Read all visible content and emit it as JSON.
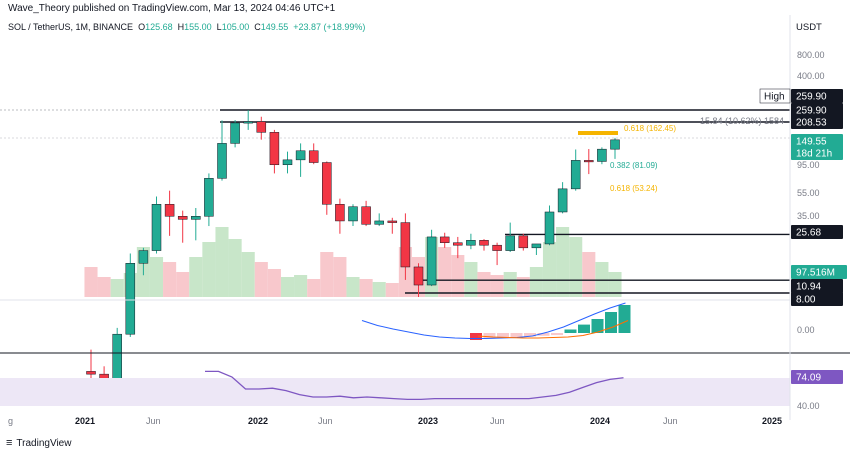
{
  "header": {
    "publisher": "Wave_Theory published on TradingView.com, Mar 13, 2024 04:46 UTC+1"
  },
  "legend": {
    "symbol": "SOL / TetherUS, 1M, BINANCE",
    "o_label": "O",
    "o_value": "125.68",
    "h_label": "H",
    "h_value": "155.00",
    "l_label": "L",
    "l_value": "105.00",
    "c_label": "C",
    "c_value": "149.55",
    "change": "+23.87 (+18.99%)"
  },
  "currency": "USDT",
  "footer": {
    "brand": "TradingView"
  },
  "colors": {
    "up": "#22ab94",
    "down": "#f23645",
    "volume_up": "#c8e6c9",
    "volume_down": "#f8c8cc",
    "fib": "#f5b400",
    "macd_line": "#2962ff",
    "signal": "#ff6d00",
    "rsi": "#7e57c2"
  },
  "chart_data": [
    {
      "type": "candlestick",
      "title": "SOL / TetherUS, 1M, BINANCE",
      "x_ticks": [
        "g",
        "2021",
        "Jun",
        "2022",
        "Jun",
        "2023",
        "Jun",
        "2024",
        "Jun",
        "2025"
      ],
      "y_ticks": [
        "800.00",
        "400.00",
        "208.53",
        "95.00",
        "55.00",
        "35.00",
        "8.00"
      ],
      "y_scale": "log",
      "candles": [
        {
          "d": "2020-11",
          "o": 2.0,
          "h": 3.0,
          "l": 1.2,
          "c": 1.9
        },
        {
          "d": "2020-12",
          "o": 1.9,
          "h": 2.2,
          "l": 1.1,
          "c": 1.5
        },
        {
          "d": "2021-01",
          "o": 1.5,
          "h": 4.5,
          "l": 1.4,
          "c": 4.0
        },
        {
          "d": "2021-02",
          "o": 4.0,
          "h": 18.0,
          "l": 3.8,
          "c": 15.0
        },
        {
          "d": "2021-03",
          "o": 15.0,
          "h": 20.0,
          "l": 12.0,
          "c": 19.0
        },
        {
          "d": "2021-04",
          "o": 19.0,
          "h": 52.0,
          "l": 18.0,
          "c": 45.0
        },
        {
          "d": "2021-05",
          "o": 45.0,
          "h": 58.0,
          "l": 25.0,
          "c": 36.0
        },
        {
          "d": "2021-06",
          "o": 36.0,
          "h": 40.0,
          "l": 22.0,
          "c": 34.0
        },
        {
          "d": "2021-07",
          "o": 34.0,
          "h": 42.0,
          "l": 23.0,
          "c": 36.0
        },
        {
          "d": "2021-08",
          "o": 36.0,
          "h": 80.0,
          "l": 30.0,
          "c": 73.0
        },
        {
          "d": "2021-09",
          "o": 73.0,
          "h": 215.0,
          "l": 70.0,
          "c": 140.0
        },
        {
          "d": "2021-10",
          "o": 140.0,
          "h": 216.0,
          "l": 130.0,
          "c": 205.0
        },
        {
          "d": "2021-11",
          "o": 205.0,
          "h": 260.0,
          "l": 180.0,
          "c": 210.0
        },
        {
          "d": "2021-12",
          "o": 210.0,
          "h": 230.0,
          "l": 150.0,
          "c": 172.0
        },
        {
          "d": "2022-01",
          "o": 172.0,
          "h": 180.0,
          "l": 80.0,
          "c": 94.0
        },
        {
          "d": "2022-02",
          "o": 94.0,
          "h": 120.0,
          "l": 80.0,
          "c": 103.0
        },
        {
          "d": "2022-03",
          "o": 103.0,
          "h": 140.0,
          "l": 75.0,
          "c": 122.0
        },
        {
          "d": "2022-04",
          "o": 122.0,
          "h": 140.0,
          "l": 95.0,
          "c": 98.0
        },
        {
          "d": "2022-05",
          "o": 98.0,
          "h": 100.0,
          "l": 37.0,
          "c": 45.0
        },
        {
          "d": "2022-06",
          "o": 45.0,
          "h": 50.0,
          "l": 26.0,
          "c": 33.0
        },
        {
          "d": "2022-07",
          "o": 33.0,
          "h": 45.0,
          "l": 30.0,
          "c": 43.0
        },
        {
          "d": "2022-08",
          "o": 43.0,
          "h": 48.0,
          "l": 30.0,
          "c": 31.0
        },
        {
          "d": "2022-09",
          "o": 31.0,
          "h": 38.0,
          "l": 30.0,
          "c": 33.0
        },
        {
          "d": "2022-10",
          "o": 33.0,
          "h": 35.0,
          "l": 26.0,
          "c": 32.0
        },
        {
          "d": "2022-11",
          "o": 32.0,
          "h": 38.0,
          "l": 11.0,
          "c": 14.0
        },
        {
          "d": "2022-12",
          "o": 14.0,
          "h": 15.0,
          "l": 8.0,
          "c": 10.0
        },
        {
          "d": "2023-01",
          "o": 10.0,
          "h": 28.0,
          "l": 9.8,
          "c": 24.5
        },
        {
          "d": "2023-02",
          "o": 24.5,
          "h": 26.5,
          "l": 20.0,
          "c": 22.0
        },
        {
          "d": "2023-03",
          "o": 22.0,
          "h": 24.5,
          "l": 16.5,
          "c": 21.0
        },
        {
          "d": "2023-04",
          "o": 21.0,
          "h": 26.0,
          "l": 19.5,
          "c": 23.0
        },
        {
          "d": "2023-05",
          "o": 23.0,
          "h": 23.5,
          "l": 19.0,
          "c": 21.0
        },
        {
          "d": "2023-06",
          "o": 21.0,
          "h": 22.0,
          "l": 14.5,
          "c": 19.0
        },
        {
          "d": "2023-07",
          "o": 19.0,
          "h": 32.0,
          "l": 18.5,
          "c": 25.0
        },
        {
          "d": "2023-08",
          "o": 25.0,
          "h": 26.0,
          "l": 19.0,
          "c": 20.0
        },
        {
          "d": "2023-09",
          "o": 20.0,
          "h": 21.0,
          "l": 17.5,
          "c": 21.5
        },
        {
          "d": "2023-10",
          "o": 21.5,
          "h": 44.0,
          "l": 21.0,
          "c": 39.0
        },
        {
          "d": "2023-11",
          "o": 39.0,
          "h": 68.0,
          "l": 38.0,
          "c": 60.0
        },
        {
          "d": "2023-12",
          "o": 60.0,
          "h": 125.0,
          "l": 58.0,
          "c": 102.0
        },
        {
          "d": "2024-01",
          "o": 102.0,
          "h": 126.0,
          "l": 79.0,
          "c": 100.0
        },
        {
          "d": "2024-02",
          "o": 100.0,
          "h": 130.0,
          "l": 95.0,
          "c": 125.7
        },
        {
          "d": "2024-03",
          "o": 125.68,
          "h": 155.0,
          "l": 105.0,
          "c": 149.55
        }
      ],
      "horizontal_levels": [
        {
          "label": "259.90",
          "value": 259.9
        },
        {
          "label": "208.53",
          "value": 208.53
        },
        {
          "label": "25.68",
          "value": 25.68
        },
        {
          "label": "10.94",
          "value": 10.94
        },
        {
          "label": "8.00",
          "value": 8.0
        }
      ],
      "fib_labels": [
        {
          "text": "0.618 (162.45)",
          "value": 162.45
        },
        {
          "text": "0.382 (81.09)",
          "value": 81.09
        },
        {
          "text": "0.618 (53.24)",
          "value": 53.24
        }
      ],
      "range_annotation": "15.84 (10.62%) 1584",
      "price_tags": {
        "high_label": "High",
        "high": "259.90",
        "level1": "259.90",
        "level2": "208.53",
        "close": "149.55",
        "countdown": "18d 21h",
        "support": "25.68",
        "low1": "10.94",
        "low2": "8.00",
        "volume": "97.516M"
      },
      "volume_area_note": "up/down volume shading behind candles"
    },
    {
      "type": "line",
      "title": "MACD",
      "y_ticks": [
        "0.00"
      ],
      "histogram": [
        -1.0,
        -0.8,
        -0.7,
        -0.6,
        -0.5,
        -0.4,
        -0.3,
        0.5,
        1.2,
        2.0,
        3.0,
        4.0
      ],
      "macd_line": [
        2.5,
        1.5,
        0.8,
        0.2,
        -0.4,
        -0.8,
        -1.0,
        -1.1,
        -1.1,
        -1.0,
        -0.9,
        -0.6,
        0.2,
        1.2,
        2.5,
        3.8,
        5.0,
        6.0
      ],
      "signal_line": [
        -0.6,
        -0.8,
        -0.9,
        -1.0,
        -1.0,
        -0.9,
        -0.8,
        -0.5,
        0.2,
        1.2,
        2.5
      ]
    },
    {
      "type": "line",
      "title": "RSI",
      "y_ticks": [
        "40.00"
      ],
      "last_value": "74.09",
      "values": [
        82,
        82,
        75,
        60,
        60,
        61,
        58,
        53,
        50,
        50,
        51,
        49,
        50,
        49,
        48,
        47,
        47,
        48,
        48,
        48,
        48,
        48,
        48,
        48,
        48,
        50,
        52,
        56,
        62,
        68,
        72,
        74.09
      ]
    }
  ]
}
